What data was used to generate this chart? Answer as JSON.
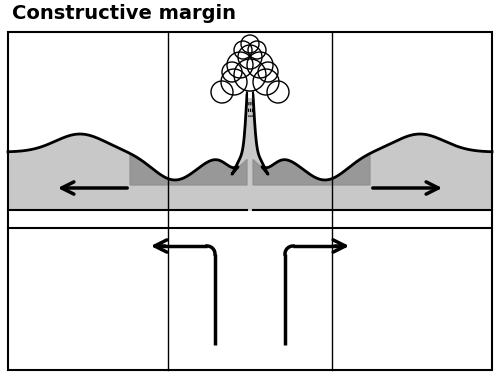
{
  "title": "Constructive margin",
  "title_fontsize": 14,
  "title_fontweight": "bold",
  "bg_color": "#ffffff",
  "plate_color": "#c8c8c8",
  "plate_dark_color": "#909090",
  "outline_color": "#000000",
  "arrow_color": "#000000",
  "figure_size": [
    5.0,
    3.75
  ],
  "dpi": 100,
  "grid_color": "#000000"
}
